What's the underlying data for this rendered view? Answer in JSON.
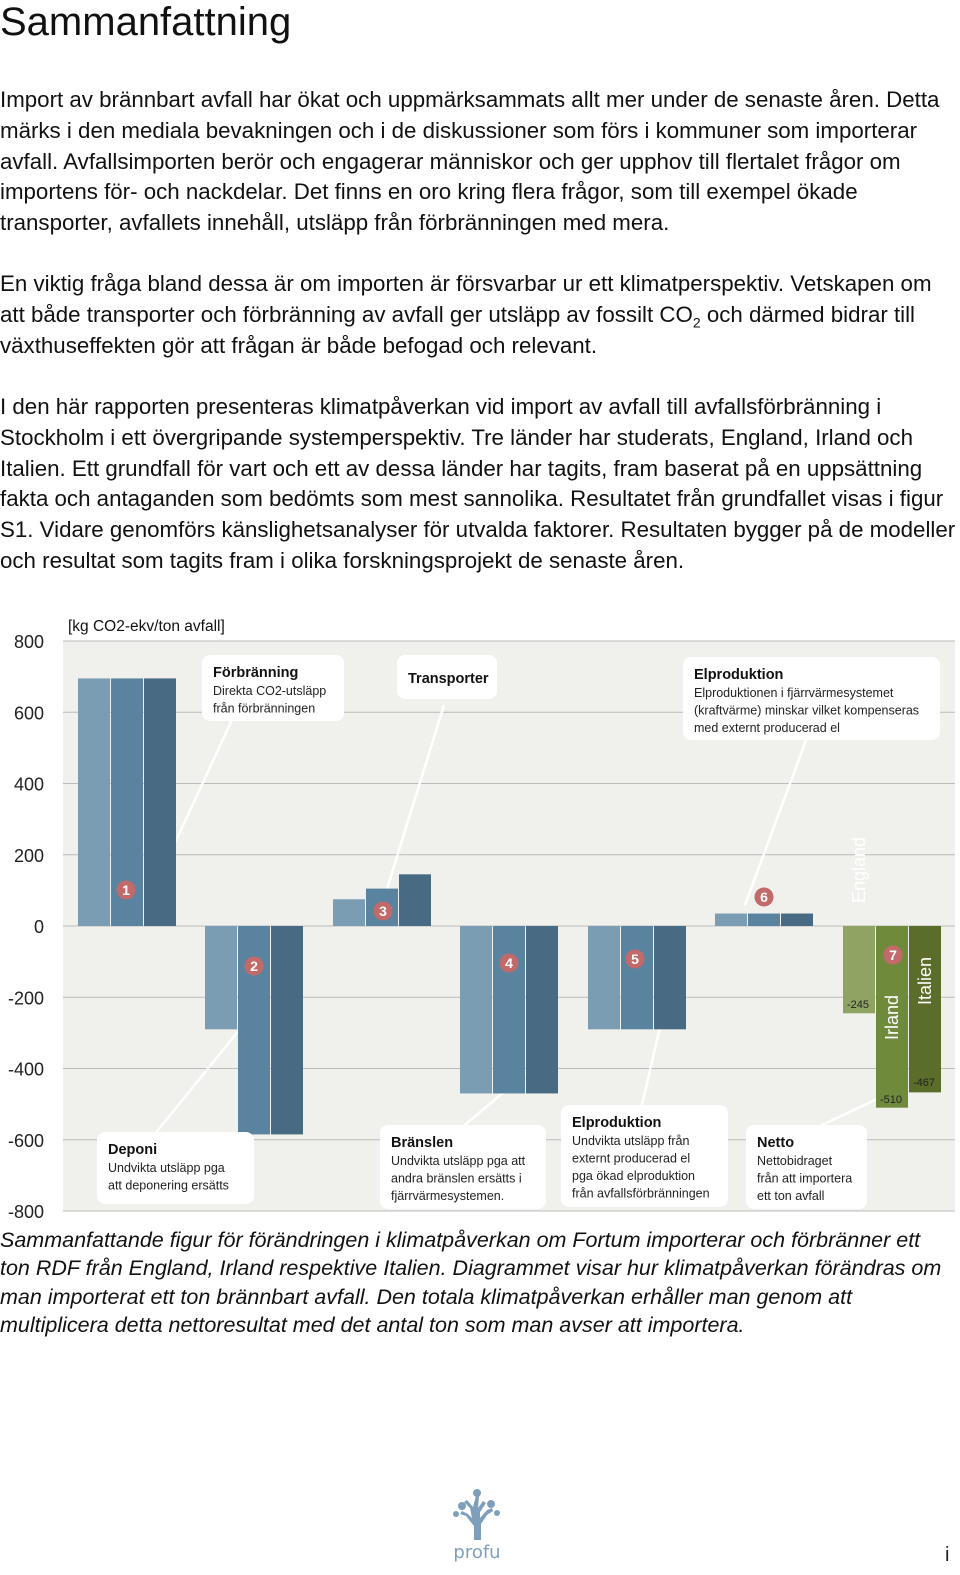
{
  "page": {
    "title": "Sammanfattning",
    "paragraphs": {
      "p1": "Import av brännbart avfall har ökat och uppmärksammats allt mer under de senaste åren. Detta märks i den mediala bevakningen och i de diskussioner som förs i kommuner som importerar avfall. Avfallsimporten berör och engagerar människor och ger upphov till flertalet frågor om importens för- och nackdelar. Det finns en oro kring flera frågor, som till exempel ökade transporter, avfallets innehåll, utsläpp från förbränningen med mera.",
      "p2a": "En viktig fråga bland dessa är om importen är försvarbar ur ett klimatperspektiv. Vetskapen om att både transporter och förbränning av avfall ger utsläpp av fossilt CO",
      "p2sub": "2",
      "p2b": " och därmed bidrar till växthuseffekten gör att frågan är både befogad och relevant.",
      "p3": "I den här rapporten presenteras klimatpåverkan vid import av avfall till avfallsförbränning i Stockholm i ett övergripande systemperspektiv. Tre länder har studerats, England, Irland och Italien. Ett grundfall för vart och ett av dessa länder har tagits, fram baserat på en uppsättning fakta och antaganden som bedömts som mest sannolika. Resultatet från grundfallet visas i figur S1. Vidare genomförs känslighetsanalyser för utvalda faktorer. Resultaten bygger på de modeller och resultat som tagits fram i olika forskningsprojekt de senaste åren."
    },
    "caption": "Sammanfattande figur för förändringen i klimatpåverkan om Fortum importerar och förbränner ett ton RDF från England, Irland respektive Italien. Diagrammet visar hur klimatpåverkan förändras om man importerat ett ton brännbart avfall. Den totala klimatpåverkan erhåller man genom att multiplicera detta nettoresultat med det antal ton som man avser att importera.",
    "logo_text": "profu",
    "page_number": "i"
  },
  "chart_data": {
    "type": "bar",
    "unit_label": "[kg CO2-ekv/ton avfall]",
    "ylim": [
      -800,
      800
    ],
    "yticks": [
      800,
      600,
      400,
      200,
      0,
      -200,
      -400,
      -600,
      -800
    ],
    "grid": true,
    "series_order": [
      "England",
      "Irland",
      "Italien"
    ],
    "colors": {
      "England": "#7a9db4",
      "Irland": "#5a83a0",
      "Italien": "#486a82",
      "net_England": "#8fa463",
      "net_Irland": "#6f8a3b",
      "net_Italien": "#5a6d2a",
      "background": "#f0f0ec",
      "grid": "#bbbbbb",
      "marker": "#c26a6a"
    },
    "groups": [
      {
        "id": "1",
        "values": [
          695,
          695,
          695
        ]
      },
      {
        "id": "2",
        "values": [
          -290,
          -585,
          -585
        ]
      },
      {
        "id": "3",
        "values": [
          75,
          105,
          145
        ]
      },
      {
        "id": "4",
        "values": [
          -470,
          -470,
          -470
        ]
      },
      {
        "id": "5",
        "values": [
          -290,
          -290,
          -290
        ]
      },
      {
        "id": "6",
        "values": [
          35,
          35,
          35
        ]
      },
      {
        "id": "7",
        "values": [
          -245,
          -510,
          -467
        ],
        "net": true
      }
    ],
    "net_labels": {
      "names": [
        "England",
        "Irland",
        "Italien"
      ],
      "values": [
        "-245",
        "-510",
        "-467"
      ]
    },
    "callouts": [
      {
        "id": "forbranning",
        "title": "Förbränning",
        "lines": [
          "Direkta CO2-utsläpp",
          "från förbränningen"
        ]
      },
      {
        "id": "transporter",
        "title": "Transporter",
        "lines": []
      },
      {
        "id": "elproduktion_top",
        "title": "Elproduktion",
        "lines": [
          "Elproduktionen i fjärrvärmesystemet",
          "(kraftvärme) minskar vilket kompenseras",
          "med externt producerad el"
        ]
      },
      {
        "id": "deponi",
        "title": "Deponi",
        "lines": [
          "Undvikta utsläpp pga",
          "att deponering ersätts"
        ]
      },
      {
        "id": "branslen",
        "title": "Bränslen",
        "lines": [
          "Undvikta utsläpp pga att",
          "andra bränslen ersätts i",
          "fjärrvärmesystemen."
        ]
      },
      {
        "id": "elproduktion_bottom",
        "title": "Elproduktion",
        "lines": [
          "Undvikta utsläpp från",
          "externt producerad el",
          "pga ökad elproduktion",
          "från avfallsförbränningen"
        ]
      },
      {
        "id": "netto",
        "title": "Netto",
        "lines": [
          "Nettobidraget",
          "från att importera",
          "ett ton avfall"
        ]
      }
    ]
  }
}
